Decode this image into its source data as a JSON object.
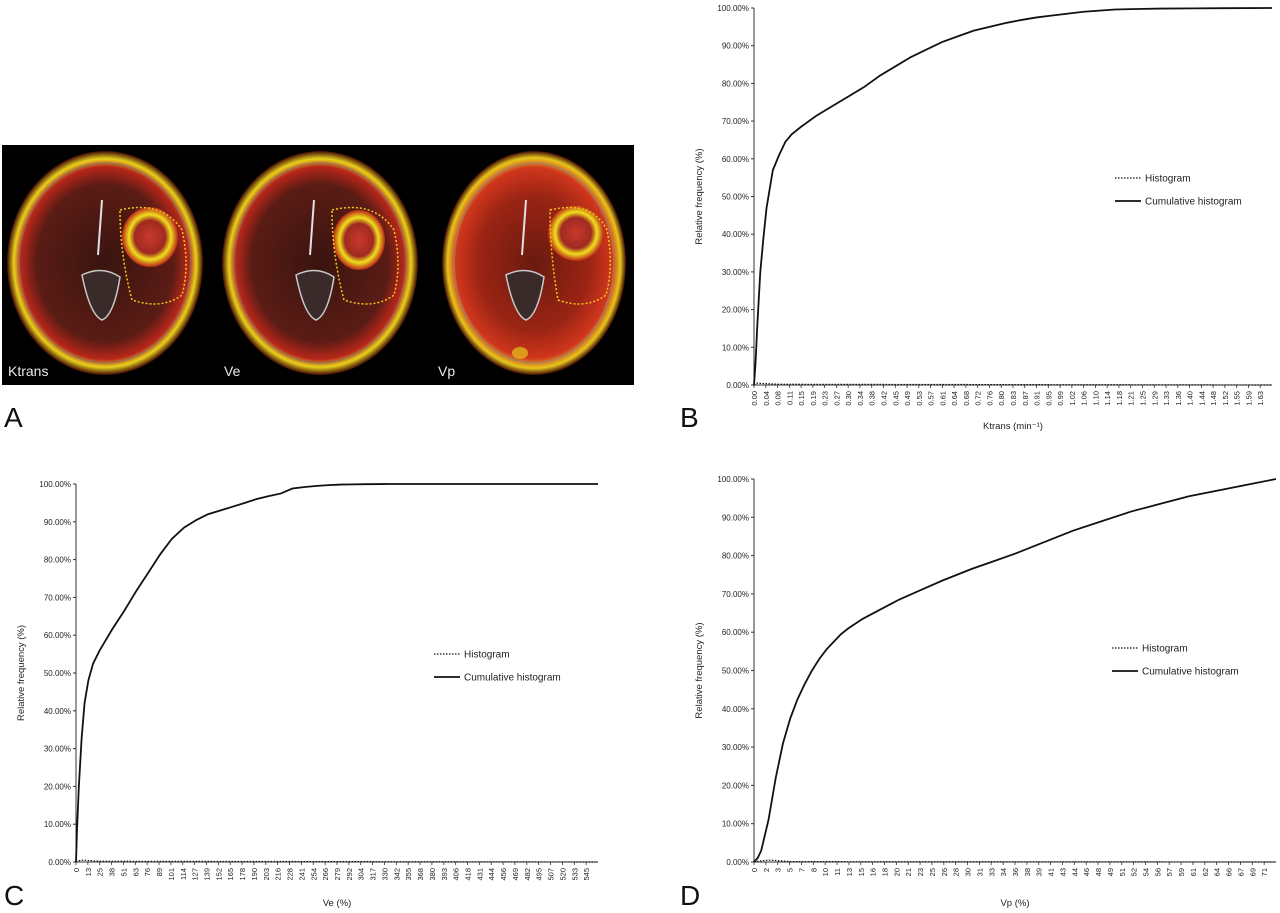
{
  "panel_labels": {
    "a": "A",
    "b": "B",
    "c": "C",
    "d": "D"
  },
  "brain_images": {
    "labels": [
      "Ktrans",
      "Ve",
      "Vp"
    ],
    "colors": {
      "background": "#000000",
      "map_red": "#c0281c",
      "map_yellow": "#f2e21a",
      "roi_outline": "#f5c518"
    }
  },
  "chart_data": [
    {
      "type": "line",
      "panel": "B",
      "xlabel": "Ktrans (min⁻¹)",
      "ylabel": "Relative frequency (%)",
      "ylim": [
        0,
        100
      ],
      "xlim": [
        0,
        1.65
      ],
      "yticks": [
        "0.00%",
        "10.00%",
        "20.00%",
        "30.00%",
        "40.00%",
        "50.00%",
        "60.00%",
        "70.00%",
        "80.00%",
        "90.00%",
        "100.00%"
      ],
      "xticks": [
        "0.00",
        "0.04",
        "0.08",
        "0.11",
        "0.15",
        "0.19",
        "0.23",
        "0.27",
        "0.30",
        "0.34",
        "0.38",
        "0.42",
        "0.45",
        "0.49",
        "0.53",
        "0.57",
        "0.61",
        "0.64",
        "0.68",
        "0.72",
        "0.76",
        "0.80",
        "0.83",
        "0.87",
        "0.91",
        "0.95",
        "0.99",
        "1.02",
        "1.06",
        "1.10",
        "1.14",
        "1.18",
        "1.21",
        "1.25",
        "1.29",
        "1.33",
        "1.36",
        "1.40",
        "1.44",
        "1.48",
        "1.52",
        "1.55",
        "1.59",
        "1.63"
      ],
      "legend_position": "right",
      "series": [
        {
          "name": "Histogram",
          "style": "dotted",
          "x": [
            0,
            0.01,
            0.03,
            0.08,
            1.65
          ],
          "y": [
            0,
            0.5,
            0.4,
            0.2,
            0
          ]
        },
        {
          "name": "Cumulative histogram",
          "style": "solid",
          "x": [
            0,
            0.005,
            0.01,
            0.02,
            0.03,
            0.04,
            0.05,
            0.06,
            0.08,
            0.1,
            0.12,
            0.15,
            0.2,
            0.25,
            0.3,
            0.35,
            0.4,
            0.45,
            0.5,
            0.55,
            0.6,
            0.65,
            0.7,
            0.75,
            0.8,
            0.85,
            0.9,
            0.95,
            1.0,
            1.05,
            1.1,
            1.15,
            1.2,
            1.3,
            1.4,
            1.5,
            1.65
          ],
          "y": [
            0,
            6,
            15,
            30,
            39,
            47,
            52,
            57,
            61,
            64.5,
            66.5,
            68.5,
            71.5,
            74,
            76.5,
            79,
            82,
            84.5,
            87,
            89,
            91,
            92.5,
            94,
            95,
            96,
            96.8,
            97.5,
            98,
            98.5,
            99,
            99.3,
            99.6,
            99.7,
            99.85,
            99.9,
            99.95,
            100
          ]
        }
      ]
    },
    {
      "type": "line",
      "panel": "C",
      "xlabel": "Ve (%)",
      "ylabel": "Relative frequency (%)",
      "ylim": [
        0,
        100
      ],
      "xlim": [
        0,
        550
      ],
      "yticks": [
        "0.00%",
        "10.00%",
        "20.00%",
        "30.00%",
        "40.00%",
        "50.00%",
        "60.00%",
        "70.00%",
        "80.00%",
        "90.00%",
        "100.00%"
      ],
      "xticks": [
        "0",
        "13",
        "25",
        "38",
        "51",
        "63",
        "76",
        "89",
        "101",
        "114",
        "127",
        "139",
        "152",
        "165",
        "178",
        "190",
        "203",
        "216",
        "228",
        "241",
        "254",
        "266",
        "279",
        "292",
        "304",
        "317",
        "330",
        "342",
        "355",
        "368",
        "380",
        "393",
        "406",
        "418",
        "431",
        "444",
        "456",
        "469",
        "482",
        "495",
        "507",
        "520",
        "533",
        "545"
      ],
      "legend_position": "right",
      "series": [
        {
          "name": "Histogram",
          "style": "dotted",
          "x": [
            0,
            5,
            13,
            25,
            550
          ],
          "y": [
            0,
            0.5,
            0.4,
            0.2,
            0
          ]
        },
        {
          "name": "Cumulative histogram",
          "style": "solid",
          "x": [
            0,
            1,
            3,
            6,
            9,
            13,
            18,
            25,
            38,
            51,
            63,
            76,
            89,
            101,
            114,
            127,
            139,
            152,
            165,
            178,
            190,
            203,
            216,
            228,
            241,
            254,
            266,
            279,
            292,
            304,
            330,
            400,
            550
          ],
          "y": [
            0,
            8,
            20,
            33,
            42,
            48,
            52.5,
            56,
            61.5,
            66.5,
            71.5,
            76.5,
            81.5,
            85.5,
            88.5,
            90.5,
            92,
            93,
            94,
            95,
            96,
            96.8,
            97.5,
            98.8,
            99.2,
            99.5,
            99.7,
            99.85,
            99.9,
            99.95,
            100,
            100,
            100
          ]
        }
      ]
    },
    {
      "type": "line",
      "panel": "D",
      "xlabel": "Vp (%)",
      "ylabel": "Relative frequency (%)",
      "ylim": [
        0,
        100
      ],
      "xlim": [
        0,
        72
      ],
      "yticks": [
        "0.00%",
        "10.00%",
        "20.00%",
        "30.00%",
        "40.00%",
        "50.00%",
        "60.00%",
        "70.00%",
        "80.00%",
        "90.00%",
        "100.00%"
      ],
      "xticks": [
        "0",
        "2",
        "3",
        "5",
        "7",
        "8",
        "10",
        "11",
        "13",
        "15",
        "16",
        "18",
        "20",
        "21",
        "23",
        "25",
        "26",
        "28",
        "30",
        "31",
        "33",
        "34",
        "36",
        "38",
        "39",
        "41",
        "43",
        "44",
        "46",
        "48",
        "49",
        "51",
        "52",
        "54",
        "56",
        "57",
        "59",
        "61",
        "62",
        "64",
        "66",
        "67",
        "69",
        "71"
      ],
      "legend_position": "right",
      "series": [
        {
          "name": "Histogram",
          "style": "dotted",
          "x": [
            0,
            1,
            2,
            3,
            5,
            72
          ],
          "y": [
            0,
            0.3,
            0.5,
            0.4,
            0.1,
            0
          ]
        },
        {
          "name": "Cumulative histogram",
          "style": "solid",
          "x": [
            0,
            0.5,
            1,
            2,
            3,
            4,
            5,
            6,
            7,
            8,
            9,
            10,
            11,
            12,
            13,
            15,
            18,
            20,
            23,
            26,
            30,
            33,
            36,
            40,
            44,
            48,
            52,
            56,
            60,
            64,
            68,
            72
          ],
          "y": [
            0,
            1,
            3,
            11,
            22,
            31,
            37.5,
            42.5,
            46.5,
            50,
            53,
            55.5,
            57.5,
            59.5,
            61,
            63.5,
            66.5,
            68.5,
            71,
            73.5,
            76.5,
            78.5,
            80.5,
            83.5,
            86.5,
            89,
            91.5,
            93.5,
            95.5,
            97,
            98.5,
            100
          ]
        }
      ]
    }
  ]
}
